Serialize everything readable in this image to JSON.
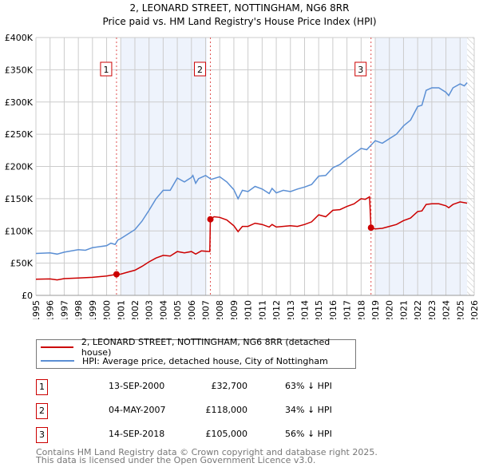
{
  "chart_data": {
    "type": "line",
    "title": "2, LEONARD STREET, NOTTINGHAM, NG6 8RR",
    "subtitle": "Price paid vs. HM Land Registry's House Price Index (HPI)",
    "xlim": [
      1995,
      2026
    ],
    "ylim": [
      0,
      400000
    ],
    "yticks": [
      {
        "v": 0,
        "label": "£0"
      },
      {
        "v": 50000,
        "label": "£50K"
      },
      {
        "v": 100000,
        "label": "£100K"
      },
      {
        "v": 150000,
        "label": "£150K"
      },
      {
        "v": 200000,
        "label": "£200K"
      },
      {
        "v": 250000,
        "label": "£250K"
      },
      {
        "v": 300000,
        "label": "£300K"
      },
      {
        "v": 350000,
        "label": "£350K"
      },
      {
        "v": 400000,
        "label": "£400K"
      }
    ],
    "xticks": [
      "1995",
      "1996",
      "1997",
      "1998",
      "1999",
      "2000",
      "2001",
      "2002",
      "2003",
      "2004",
      "2005",
      "2006",
      "2007",
      "2008",
      "2009",
      "2010",
      "2011",
      "2012",
      "2013",
      "2014",
      "2015",
      "2016",
      "2017",
      "2018",
      "2019",
      "2020",
      "2021",
      "2022",
      "2023",
      "2024",
      "2025",
      "2026"
    ],
    "shaded_ranges": [
      [
        2001.0,
        2007.1
      ],
      [
        2019.0,
        2025.5
      ]
    ],
    "hatched_from": 2025.5,
    "series": [
      {
        "name": "2, LEONARD STREET, NOTTINGHAM, NG6 8RR (detached house)",
        "color": "#cc0000",
        "x": [
          1995,
          1996,
          1996.5,
          1997,
          1998,
          1999,
          2000,
          2000.7,
          2001,
          2001.5,
          2002,
          2002.5,
          2003,
          2003.5,
          2004,
          2004.5,
          2005,
          2005.5,
          2006,
          2006.3,
          2006.7,
          2007.3,
          2007.34,
          2007.6,
          2008,
          2008.5,
          2009,
          2009.3,
          2009.6,
          2010,
          2010.5,
          2011,
          2011.5,
          2011.7,
          2012,
          2013,
          2013.5,
          2014,
          2014.5,
          2015,
          2015.5,
          2016,
          2016.5,
          2017,
          2017.5,
          2018,
          2018.3,
          2018.6,
          2018.7,
          2019,
          2019.5,
          2020,
          2020.5,
          2021,
          2021.5,
          2022,
          2022.3,
          2022.6,
          2023,
          2023.5,
          2024,
          2024.2,
          2024.5,
          2025,
          2025.5
        ],
        "y": [
          25,
          25.5,
          24,
          26,
          27,
          28,
          30,
          32.7,
          33,
          36,
          39,
          45,
          52,
          58,
          62,
          61,
          68,
          66,
          68,
          64,
          69,
          68,
          118,
          122,
          121,
          117,
          108,
          99,
          107,
          107,
          112,
          110,
          106,
          110,
          106,
          108,
          107,
          110,
          114,
          125,
          122,
          132,
          133,
          138,
          142,
          150,
          149,
          153,
          105,
          103,
          104,
          107,
          110,
          116,
          120,
          130,
          131,
          141,
          142,
          142,
          139,
          136,
          141,
          145,
          143
        ]
      },
      {
        "name": "HPI: Average price, detached house, City of Nottingham",
        "color": "#5b8fd4",
        "x": [
          1995,
          1996,
          1996.5,
          1997,
          1998,
          1998.5,
          1999,
          2000,
          2000.3,
          2000.6,
          2000.8,
          2001,
          2001.5,
          2002,
          2002.5,
          2003,
          2003.5,
          2004,
          2004.5,
          2005,
          2005.5,
          2006,
          2006.1,
          2006.3,
          2006.5,
          2007,
          2007.4,
          2008,
          2008.5,
          2009,
          2009.3,
          2009.6,
          2010,
          2010.5,
          2011,
          2011.5,
          2011.7,
          2012,
          2012.5,
          2013,
          2013.5,
          2014,
          2014.5,
          2015,
          2015.5,
          2016,
          2016.5,
          2017,
          2017.5,
          2018,
          2018.4,
          2018.7,
          2019,
          2019.5,
          2020,
          2020.5,
          2021,
          2021.5,
          2022,
          2022.3,
          2022.6,
          2023,
          2023.5,
          2024,
          2024.2,
          2024.5,
          2025,
          2025.3,
          2025.5
        ],
        "y": [
          65,
          66,
          64,
          67,
          71,
          70,
          74,
          77,
          81,
          79,
          86,
          88,
          95,
          102,
          115,
          132,
          150,
          163,
          163,
          182,
          176,
          183,
          186,
          174,
          181,
          186,
          180,
          184,
          176,
          164,
          150,
          163,
          161,
          169,
          165,
          158,
          166,
          159,
          163,
          161,
          165,
          168,
          172,
          185,
          186,
          198,
          203,
          212,
          220,
          228,
          226,
          233,
          240,
          236,
          243,
          250,
          263,
          272,
          293,
          295,
          318,
          322,
          322,
          315,
          310,
          322,
          328,
          325,
          330
        ]
      }
    ],
    "yunit": "thousands GBP",
    "markers": [
      {
        "label": "1",
        "x": 2000.7,
        "y": 32.7
      },
      {
        "label": "2",
        "x": 2007.34,
        "y": 118
      },
      {
        "label": "3",
        "x": 2018.7,
        "y": 105
      }
    ]
  },
  "legend": {
    "property": "2, LEONARD STREET, NOTTINGHAM, NG6 8RR (detached house)",
    "hpi": "HPI: Average price, detached house, City of Nottingham"
  },
  "transactions": [
    {
      "num": "1",
      "date": "13-SEP-2000",
      "price": "£32,700",
      "pct": "63% ↓ HPI"
    },
    {
      "num": "2",
      "date": "04-MAY-2007",
      "price": "£118,000",
      "pct": "34% ↓ HPI"
    },
    {
      "num": "3",
      "date": "14-SEP-2018",
      "price": "£105,000",
      "pct": "56% ↓ HPI"
    }
  ],
  "footer": [
    "Contains HM Land Registry data © Crown copyright and database right 2025.",
    "This data is licensed under the Open Government Licence v3.0."
  ]
}
